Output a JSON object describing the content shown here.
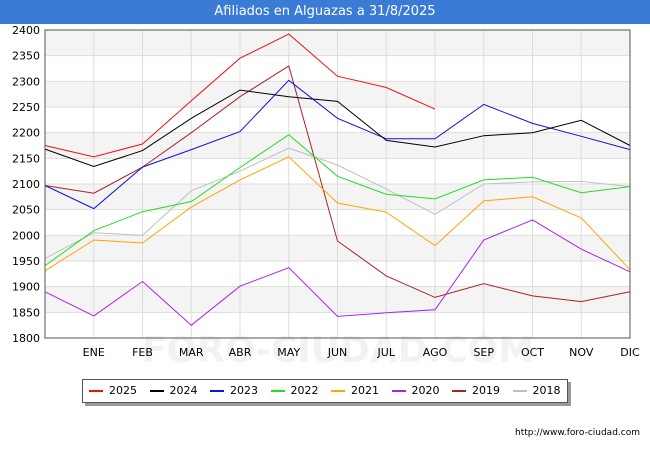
{
  "header": {
    "title": "Afiliados en Alguazas a 31/8/2025"
  },
  "source": "http://www.foro-ciudad.com",
  "watermark": "FORO-CIUDAD.COM",
  "chart_data": {
    "type": "line",
    "title": "Afiliados en Alguazas a 31/8/2025",
    "xlabel": "",
    "ylabel": "",
    "categories": [
      "",
      "ENE",
      "FEB",
      "MAR",
      "ABR",
      "MAY",
      "JUN",
      "JUL",
      "AGO",
      "SEP",
      "OCT",
      "NOV",
      "DIC"
    ],
    "ylim": [
      1800,
      2400
    ],
    "yticks": [
      1800,
      1850,
      1900,
      1950,
      2000,
      2050,
      2100,
      2150,
      2200,
      2250,
      2300,
      2350,
      2400
    ],
    "grid": true,
    "legend_position": "bottom",
    "series": [
      {
        "name": "2025",
        "color": "#ee1111",
        "values": [
          2175,
          2153,
          2178,
          2262,
          2345,
          2392,
          2310,
          2288,
          2246,
          null,
          null,
          null,
          null
        ]
      },
      {
        "name": "2024",
        "color": "#000000",
        "values": [
          2168,
          2134,
          2165,
          2228,
          2283,
          2270,
          2261,
          2185,
          2172,
          2194,
          2200,
          2224,
          2175
        ]
      },
      {
        "name": "2023",
        "color": "#1111dd",
        "values": [
          2097,
          2052,
          2133,
          2167,
          2202,
          2302,
          2228,
          2188,
          2188,
          2255,
          2218,
          2193,
          2167
        ]
      },
      {
        "name": "2022",
        "color": "#22dd22",
        "values": [
          1941,
          2009,
          2046,
          2066,
          2132,
          2196,
          2115,
          2080,
          2071,
          2108,
          2113,
          2083,
          2095
        ]
      },
      {
        "name": "2021",
        "color": "#ffa500",
        "values": [
          1931,
          1991,
          1985,
          2055,
          2108,
          2153,
          2063,
          2045,
          1980,
          2067,
          2075,
          2034,
          1933
        ]
      },
      {
        "name": "2020",
        "color": "#aa22ee",
        "values": [
          1890,
          1843,
          1910,
          1825,
          1901,
          1937,
          1842,
          1849,
          1855,
          1991,
          2030,
          1973,
          1929
        ]
      },
      {
        "name": "2019",
        "color": "#aa2222",
        "values": [
          2097,
          2082,
          2133,
          2200,
          2270,
          2330,
          1989,
          1921,
          1879,
          1906,
          1882,
          1871,
          1890
        ]
      },
      {
        "name": "2018",
        "color": "#c0c0c0",
        "values": [
          1955,
          2005,
          2000,
          2087,
          2125,
          2170,
          2137,
          2090,
          2041,
          2100,
          2104,
          2105,
          2095
        ]
      }
    ]
  }
}
